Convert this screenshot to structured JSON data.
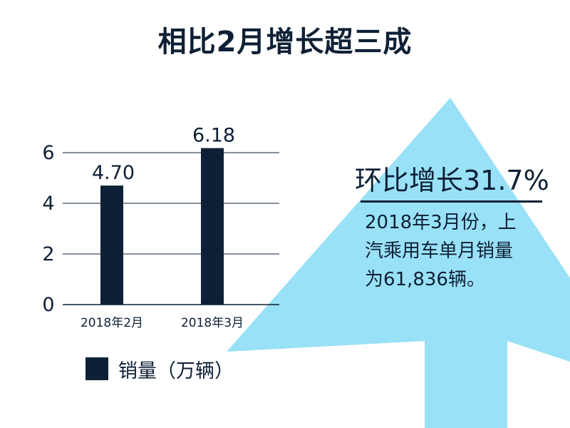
{
  "title": "相比2月增长超三成",
  "colors": {
    "bar": "#0e2035",
    "arrow": "#99e1f7",
    "grid": "#0e2035",
    "text": "#0e2035"
  },
  "chart_data": {
    "type": "bar",
    "categories": [
      "2018年2月",
      "2018年3月"
    ],
    "series": [
      {
        "name": "销量（万辆）",
        "values": [
          4.7,
          6.18
        ]
      }
    ],
    "value_labels": [
      "4.70",
      "6.18"
    ],
    "yticks": [
      "0",
      "2",
      "4",
      "6"
    ],
    "ylim": [
      0,
      6
    ],
    "xlabel": "",
    "ylabel": "",
    "grid": true,
    "legend": "bottom-left"
  },
  "legend_label": "销量（万辆）",
  "callout": {
    "headline": "环比增长31.7%",
    "lines": [
      "2018年3月份，上",
      "汽乘用车单月销量",
      "为61,836辆。"
    ]
  }
}
